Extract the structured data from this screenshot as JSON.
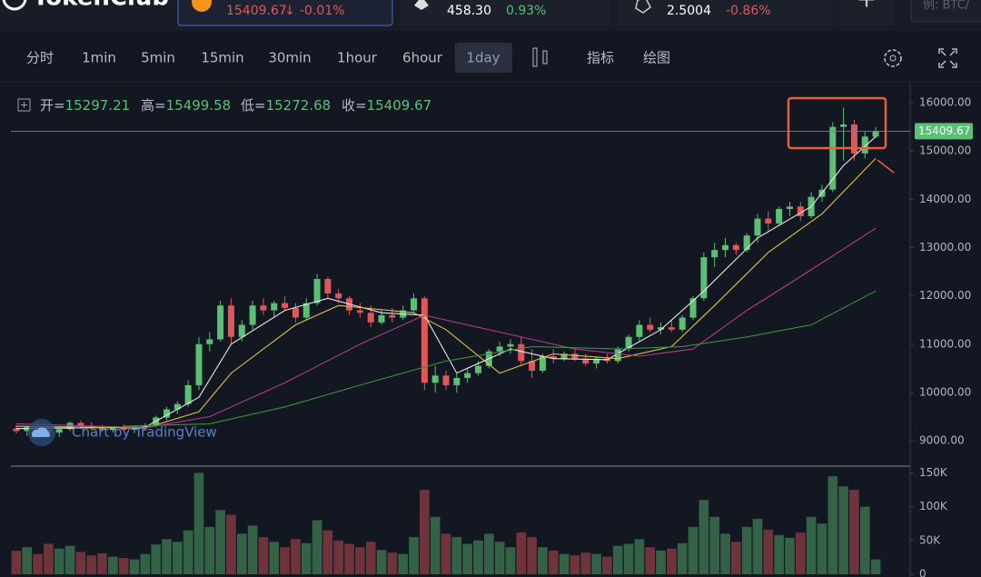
{
  "header": {
    "brand": "TokenClub",
    "tabs": [
      {
        "arrow": "↓",
        "change": "-0.01%"
      },
      {
        "price": "458.30",
        "change": "0.93%"
      },
      {
        "price": "2.5004",
        "change": "-0.86%"
      }
    ],
    "add": "+",
    "search": "例: BTC/"
  },
  "toolbar": {
    "intervals": [
      "分时",
      "1min",
      "5min",
      "15min",
      "30min",
      "1hour",
      "6hour",
      "1day"
    ],
    "selected": "1day",
    "tools": [
      "指标",
      "绘图"
    ]
  },
  "legend_labels": [
    "开=",
    "高=",
    "低=",
    "收="
  ],
  "watermark": "Chart by TradingView",
  "chart_data": {
    "type": "candlestick",
    "up_color": "#5cbf76",
    "down_color": "#e0575b",
    "grid": false,
    "open": [
      9250,
      9200,
      9280,
      9230,
      9170,
      9240,
      9370,
      9300,
      9260,
      9220,
      9280,
      9230,
      9270,
      9320,
      9480,
      9650,
      9760,
      10150,
      11000,
      11100,
      11800,
      11150,
      11400,
      11800,
      11700,
      11850,
      11750,
      11550,
      11850,
      12350,
      12050,
      11950,
      11700,
      11650,
      11450,
      11600,
      11550,
      11700,
      11950,
      10200,
      10350,
      10150,
      10300,
      10400,
      10550,
      10850,
      10950,
      11000,
      10650,
      10450,
      10750,
      10700,
      10800,
      10700,
      10600,
      10700,
      10650,
      10900,
      11150,
      11400,
      11300,
      11350,
      11300,
      11550,
      11950,
      12800,
      12950,
      13050,
      12950,
      13250,
      13600,
      13500,
      13800,
      13850,
      13650,
      14050,
      14200,
      15500,
      15550,
      14950,
      15297.21
    ],
    "high": [
      9320,
      9300,
      9350,
      9310,
      9260,
      9400,
      9420,
      9380,
      9330,
      9300,
      9340,
      9300,
      9360,
      9520,
      9700,
      9820,
      10250,
      11150,
      11250,
      11900,
      11950,
      11500,
      11900,
      11950,
      11900,
      12000,
      11850,
      11950,
      12450,
      12400,
      12150,
      12000,
      11850,
      11800,
      11700,
      11750,
      11800,
      12050,
      12000,
      10550,
      10450,
      10400,
      10500,
      10650,
      10900,
      11050,
      11100,
      11150,
      10900,
      10800,
      10900,
      10850,
      10900,
      10800,
      10750,
      10800,
      10950,
      11200,
      11500,
      11550,
      11450,
      11500,
      11600,
      12000,
      12900,
      13100,
      13200,
      13100,
      13300,
      13700,
      13750,
      13850,
      13950,
      13950,
      14150,
      14300,
      15600,
      15900,
      15650,
      15400,
      15499.58
    ],
    "low": [
      9150,
      9100,
      9180,
      9120,
      9080,
      9200,
      9250,
      9220,
      9180,
      9170,
      9200,
      9160,
      9210,
      9280,
      9420,
      9550,
      9700,
      10050,
      10850,
      11050,
      11000,
      11050,
      11300,
      11600,
      11550,
      11700,
      11450,
      11500,
      11800,
      11950,
      11850,
      11600,
      11550,
      11350,
      11400,
      11450,
      11500,
      11650,
      10050,
      10000,
      10050,
      10000,
      10200,
      10350,
      10500,
      10750,
      10800,
      10550,
      10300,
      10400,
      10600,
      10650,
      10650,
      10550,
      10500,
      10600,
      10600,
      10850,
      11050,
      11250,
      11200,
      11250,
      11250,
      11500,
      11900,
      12600,
      12800,
      12850,
      12900,
      13100,
      13350,
      13450,
      13650,
      13550,
      13600,
      13950,
      14150,
      14800,
      14800,
      14850,
      15272.68
    ],
    "close": [
      9200,
      9280,
      9230,
      9170,
      9240,
      9370,
      9300,
      9260,
      9220,
      9280,
      9230,
      9270,
      9320,
      9480,
      9650,
      9760,
      10150,
      11000,
      11100,
      11800,
      11150,
      11400,
      11800,
      11700,
      11850,
      11750,
      11550,
      11850,
      12350,
      12050,
      11950,
      11700,
      11650,
      11450,
      11600,
      11550,
      11700,
      11950,
      10200,
      10350,
      10150,
      10300,
      10400,
      10550,
      10850,
      10950,
      11000,
      10650,
      10450,
      10750,
      10700,
      10800,
      10700,
      10600,
      10700,
      10650,
      10900,
      11150,
      11400,
      11300,
      11350,
      11300,
      11550,
      11950,
      12800,
      12950,
      13050,
      12950,
      13250,
      13600,
      13500,
      13800,
      13850,
      13650,
      14050,
      14200,
      15500,
      15550,
      14950,
      15300,
      15409.67
    ],
    "volume": [
      35000,
      40000,
      30000,
      45000,
      38000,
      42000,
      33000,
      28000,
      31000,
      26000,
      24000,
      22000,
      30000,
      44000,
      52000,
      48000,
      65000,
      150000,
      70000,
      95000,
      88000,
      60000,
      72000,
      55000,
      48000,
      40000,
      52000,
      46000,
      80000,
      65000,
      50000,
      45000,
      40000,
      48000,
      36000,
      32000,
      30000,
      55000,
      125000,
      85000,
      60000,
      55000,
      45000,
      50000,
      60000,
      48000,
      40000,
      62000,
      55000,
      40000,
      35000,
      30000,
      28000,
      32000,
      30000,
      26000,
      42000,
      45000,
      52000,
      40000,
      35000,
      38000,
      46000,
      70000,
      110000,
      85000,
      60000,
      48000,
      70000,
      82000,
      66000,
      58000,
      54000,
      62000,
      85000,
      75000,
      145000,
      130000,
      125000,
      100000,
      22000
    ],
    "ylim": [
      8530,
      16340
    ],
    "yticks": [
      {
        "value": 9000,
        "label": "9000.00"
      },
      {
        "value": 10000,
        "label": "10000.00"
      },
      {
        "value": 11000,
        "label": "11000.00"
      },
      {
        "value": 12000,
        "label": "12000.00"
      },
      {
        "value": 13000,
        "label": "13000.00"
      },
      {
        "value": 14000,
        "label": "14000.00"
      },
      {
        "value": 15000,
        "label": "15000.00"
      },
      {
        "value": 16000,
        "label": "16000.00"
      }
    ],
    "volume_ylim": [
      0,
      160000
    ],
    "volume_yticks": [
      0,
      {
        "value": 50000,
        "label": "50K"
      },
      {
        "value": 100000,
        "label": "100K"
      },
      {
        "value": 150000,
        "label": "150K"
      }
    ],
    "ma_lines": [
      {
        "color": "#e6e6e6",
        "x": [
          0,
          12,
          17,
          20,
          25,
          29,
          34,
          38,
          41,
          46,
          50,
          55,
          60,
          64,
          69,
          74,
          77,
          80
        ],
        "values": [
          9250,
          9280,
          9900,
          11000,
          11700,
          11950,
          11650,
          11600,
          10400,
          10900,
          10700,
          10680,
          11300,
          12100,
          13200,
          13850,
          14700,
          15300
        ]
      },
      {
        "color": "#d8c24a",
        "x": [
          0,
          12,
          17,
          20,
          26,
          30,
          37,
          40,
          45,
          50,
          56,
          61,
          65,
          70,
          75,
          80
        ],
        "values": [
          9300,
          9260,
          9600,
          10400,
          11400,
          11800,
          11650,
          11300,
          10400,
          10800,
          10700,
          10950,
          11800,
          12900,
          13700,
          14850
        ]
      },
      {
        "color": "#b33c86",
        "x": [
          0,
          12,
          18,
          25,
          32,
          38,
          45,
          52,
          58,
          63,
          68,
          73,
          80
        ],
        "values": [
          9350,
          9270,
          9500,
          10200,
          11000,
          11600,
          11250,
          10900,
          10750,
          10900,
          11700,
          12400,
          13400
        ]
      },
      {
        "color": "#3f8f3a",
        "x": [
          10,
          18,
          25,
          32,
          40,
          48,
          56,
          62,
          68,
          74,
          80
        ],
        "values": [
          9300,
          9350,
          9700,
          10150,
          10650,
          10950,
          10900,
          10950,
          11150,
          11400,
          12100
        ]
      }
    ]
  }
}
